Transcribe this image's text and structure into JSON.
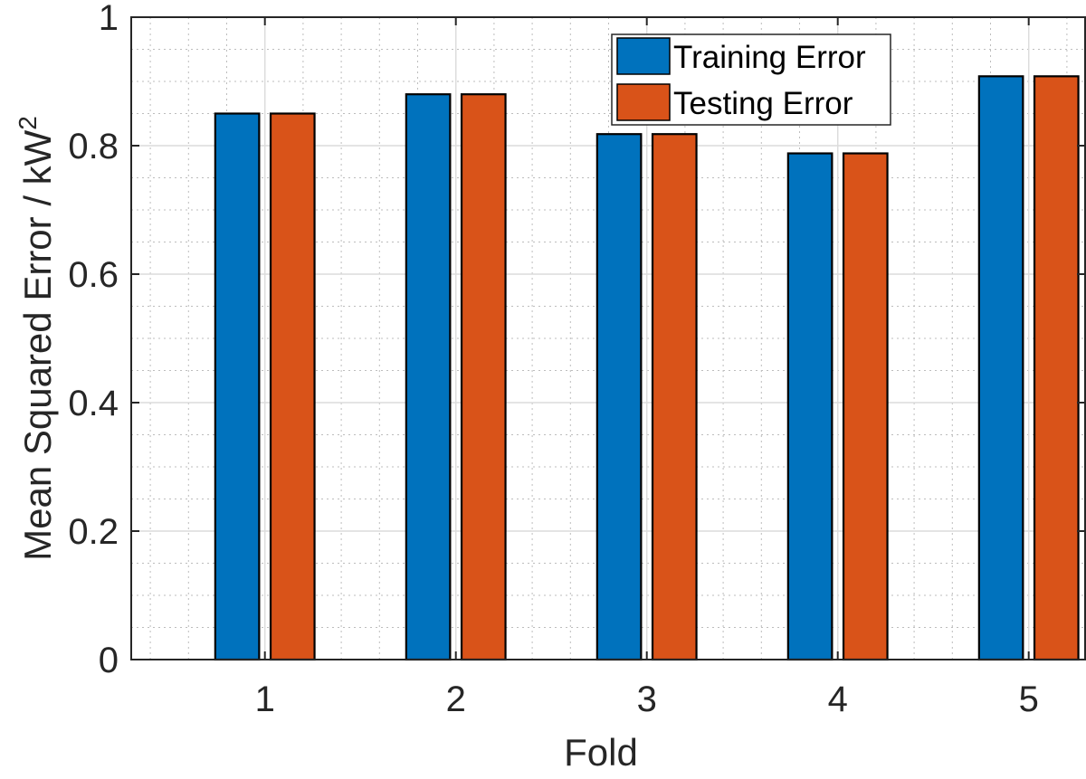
{
  "chart_data": {
    "type": "bar",
    "categories": [
      "1",
      "2",
      "3",
      "4",
      "5"
    ],
    "series": [
      {
        "name": "Training Error",
        "color": "#0072BD",
        "values": [
          0.85,
          0.88,
          0.818,
          0.788,
          0.908
        ]
      },
      {
        "name": "Testing Error",
        "color": "#D95319",
        "values": [
          0.85,
          0.88,
          0.818,
          0.788,
          0.908
        ]
      }
    ],
    "xlabel": "Fold",
    "ylabel": "Mean Squared Error / kW",
    "ylabel_superscript": "2",
    "ylim": [
      0,
      1
    ],
    "yticks": [
      "0",
      "0.2",
      "0.4",
      "0.6",
      "0.8",
      "1"
    ],
    "grid": true,
    "minor_grid": true,
    "legend_position": "top-right"
  }
}
